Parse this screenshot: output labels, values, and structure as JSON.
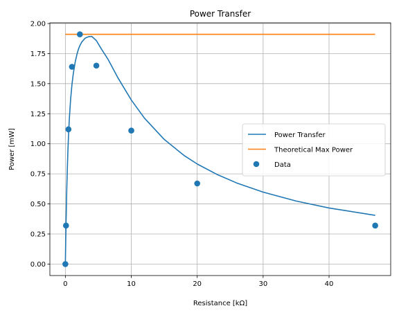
{
  "chart_data": {
    "type": "line",
    "title": "Power Transfer",
    "xlabel": "Resistance [kΩ]",
    "ylabel": "Power [mW]",
    "xlim": [
      -2.35,
      49.35
    ],
    "ylim": [
      -0.0955,
      2.0055
    ],
    "xticks": [
      0,
      10,
      20,
      30,
      40
    ],
    "xtick_labels": [
      "0",
      "10",
      "20",
      "30",
      "40"
    ],
    "yticks": [
      0,
      0.25,
      0.5,
      0.75,
      1.0,
      1.25,
      1.5,
      1.75,
      2.0
    ],
    "ytick_labels": [
      "0.00",
      "0.25",
      "0.50",
      "0.75",
      "1.00",
      "1.25",
      "1.50",
      "1.75",
      "2.00"
    ],
    "grid": true,
    "legend_position": "center-right",
    "series": [
      {
        "name": "Power Transfer",
        "kind": "curve",
        "color": "#1f77b4",
        "x": [
          0,
          0.05,
          0.1,
          0.2,
          0.3,
          0.4,
          0.5,
          0.6,
          0.8,
          1.0,
          1.2,
          1.5,
          1.8,
          2.0,
          2.2,
          2.5,
          3.0,
          3.5,
          4.0,
          4.7,
          5.5,
          6.5,
          8.0,
          10.0,
          12.0,
          15.0,
          18.0,
          20.0,
          23.0,
          26.0,
          30.0,
          35.0,
          40.0,
          47.0
        ],
        "y": [
          0,
          0.177,
          0.333,
          0.594,
          0.799,
          0.963,
          1.096,
          1.205,
          1.372,
          1.492,
          1.582,
          1.683,
          1.753,
          1.789,
          1.816,
          1.847,
          1.878,
          1.89,
          1.893,
          1.858,
          1.785,
          1.7,
          1.546,
          1.364,
          1.213,
          1.036,
          0.903,
          0.832,
          0.745,
          0.674,
          0.598,
          0.524,
          0.466,
          0.405
        ]
      },
      {
        "name": "Theoretical Max Power",
        "kind": "line",
        "color": "#ff7f0e",
        "x": [
          0,
          47
        ],
        "y": [
          1.91,
          1.91
        ]
      },
      {
        "name": "Data",
        "kind": "scatter",
        "color": "#1f77b4",
        "x": [
          0,
          0.1,
          0.47,
          1.0,
          2.2,
          4.7,
          10.0,
          20.0,
          47.0
        ],
        "y": [
          0.0,
          0.32,
          1.12,
          1.64,
          1.91,
          1.65,
          1.11,
          0.67,
          0.32
        ]
      }
    ]
  }
}
